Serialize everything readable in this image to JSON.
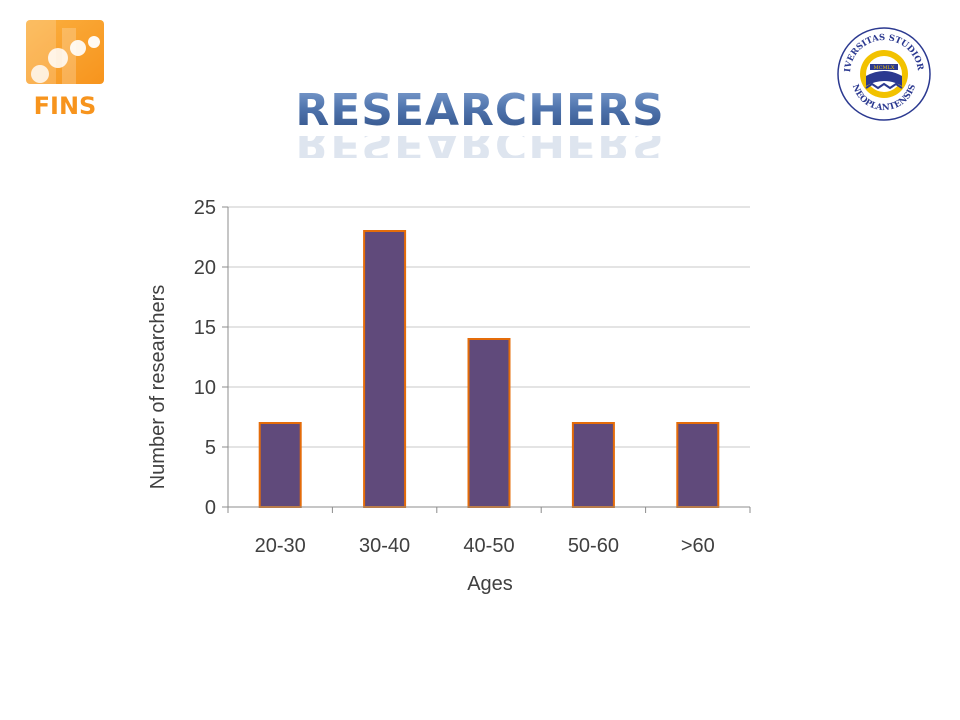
{
  "slide": {
    "title": "RESEARCHERS",
    "logo_left_text": "FINS",
    "logo_right_text_top": "UNIVERSITAS STUDIORUM",
    "logo_right_text_bottom": "NEOPLANTENSIS",
    "logo_right_year": "MCMLX"
  },
  "colors": {
    "bar_fill": "#604a7b",
    "bar_stroke": "#e46c0a",
    "grid": "#c8c8c8",
    "axis": "#8c8c8c",
    "title": "#4f74ad",
    "fins_orange": "#f7941d",
    "seal_blue": "#2b3990",
    "seal_gold": "#f2c200"
  },
  "chart_data": {
    "type": "bar",
    "categories": [
      "20-30",
      "30-40",
      "40-50",
      "50-60",
      ">60"
    ],
    "values": [
      7,
      23,
      14,
      7,
      7
    ],
    "xlabel": "Ages",
    "ylabel": "Number of researchers",
    "ylim": [
      0,
      25
    ],
    "yticks": [
      0,
      5,
      10,
      15,
      20,
      25
    ],
    "grid": true,
    "legend": "none"
  }
}
